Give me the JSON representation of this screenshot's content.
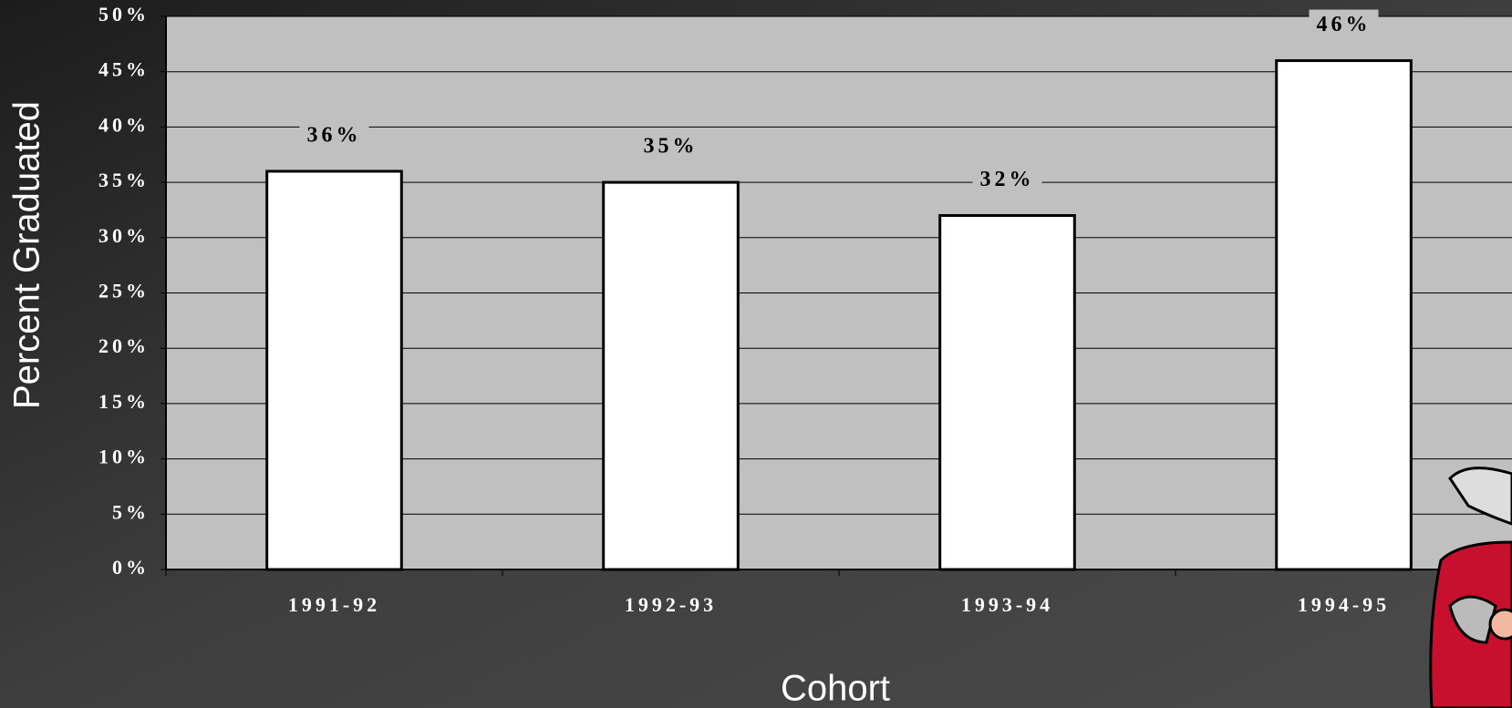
{
  "chart_data": {
    "type": "bar",
    "categories": [
      "1991-92",
      "1992-93",
      "1993-94",
      "1994-95"
    ],
    "values": [
      36,
      35,
      32,
      46
    ],
    "value_labels": [
      "36%",
      "35%",
      "32%",
      "46%"
    ],
    "color": "#ffffff",
    "ylim": [
      0,
      50
    ],
    "yticks": [
      {
        "value": 0,
        "label": "0%"
      },
      {
        "value": 5,
        "label": "5%"
      },
      {
        "value": 10,
        "label": "10%"
      },
      {
        "value": 15,
        "label": "15%"
      },
      {
        "value": 20,
        "label": "20%"
      },
      {
        "value": 25,
        "label": "25%"
      },
      {
        "value": 30,
        "label": "30%"
      },
      {
        "value": 35,
        "label": "35%"
      },
      {
        "value": 40,
        "label": "40%"
      },
      {
        "value": 45,
        "label": "45%"
      },
      {
        "value": 50,
        "label": "50%"
      }
    ],
    "grid": true,
    "x_label": "Cohort",
    "y_label": "Percent Graduated"
  }
}
